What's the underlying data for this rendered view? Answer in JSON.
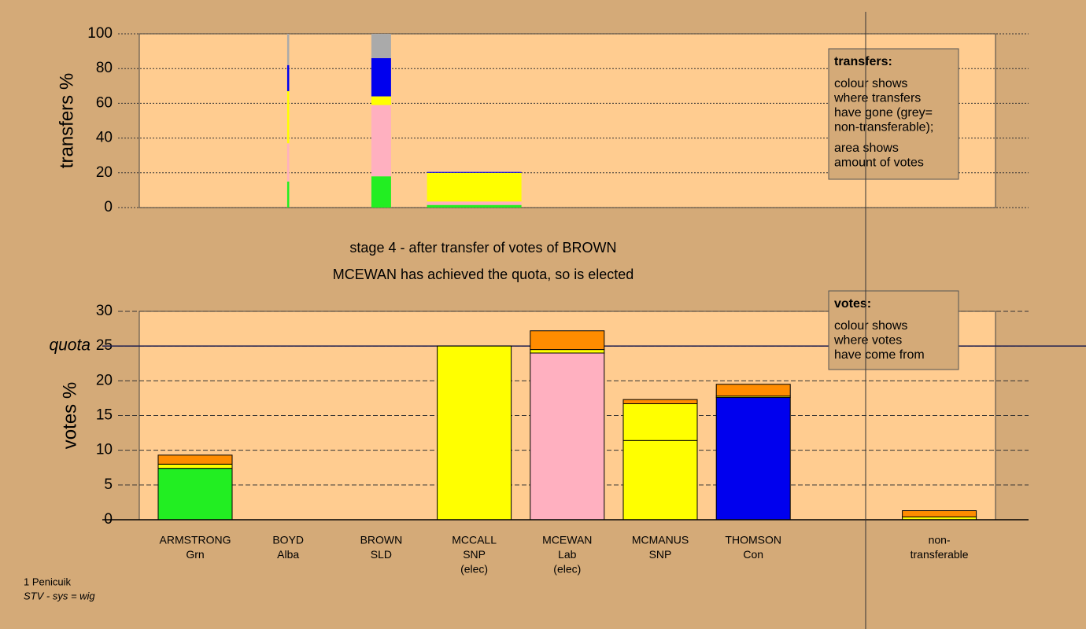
{
  "header": {
    "lines": [
      "stage 4 - after transfer of votes of BROWN",
      "MCEWAN has achieved the quota, so is elected"
    ]
  },
  "footer": {
    "lines": [
      "1 Penicuik",
      "STV - sys = wig"
    ]
  },
  "chart_data": [
    {
      "type": "bar",
      "stacked": true,
      "y_label": "transfers %",
      "ylim": [
        0,
        100
      ],
      "yticks": [
        0,
        20,
        40,
        60,
        80,
        100
      ],
      "grid": true,
      "widths": [
        0.25,
        2.5,
        12
      ],
      "series": [
        {
          "color": "#22ee22",
          "values": [
            15,
            18,
            1.5
          ]
        },
        {
          "color": "#ffb0c0",
          "values": [
            22,
            41,
            2
          ]
        },
        {
          "color": "#ffff00",
          "values": [
            30,
            5,
            16.5
          ]
        },
        {
          "color": "#0000ee",
          "values": [
            15,
            22,
            0.5
          ]
        },
        {
          "color": "#aaaaaa",
          "values": [
            18,
            14,
            0
          ]
        }
      ],
      "legend": {
        "title": "transfers:",
        "lines": [
          "colour shows",
          "where transfers",
          "have gone (grey=",
          "non-transferable);",
          "area shows",
          "amount of votes"
        ]
      }
    },
    {
      "type": "bar",
      "stacked": true,
      "y_label": "votes %",
      "ylim": [
        0,
        30
      ],
      "yticks": [
        0,
        5,
        10,
        15,
        20,
        25,
        30
      ],
      "grid": true,
      "quota": {
        "value": 25,
        "label": "quota"
      },
      "categories": [
        [
          "ARMSTRONG",
          "Grn"
        ],
        [
          "BOYD",
          "Alba"
        ],
        [
          "BROWN",
          "SLD"
        ],
        [
          "MCCALL",
          "SNP",
          "(elec)"
        ],
        [
          "MCEWAN",
          "Lab",
          "(elec)"
        ],
        [
          "MCMANUS",
          "SNP"
        ],
        [
          "THOMSON",
          "Con"
        ],
        null,
        [
          "non-",
          "transferable"
        ]
      ],
      "series": [
        {
          "color": "#22ee22",
          "values": [
            7.4,
            0,
            0,
            0,
            0,
            0,
            0,
            null,
            0
          ]
        },
        {
          "color": "#ffb0c0",
          "values": [
            0,
            0,
            0,
            0,
            24,
            0,
            0,
            null,
            0
          ]
        },
        {
          "color": "#0000ee",
          "values": [
            0,
            0,
            0,
            0,
            0,
            0,
            17.6,
            null,
            0
          ]
        },
        {
          "color": "#ffff00",
          "values": [
            0.6,
            0,
            0,
            25,
            0.5,
            11.4,
            0.2,
            null,
            0.4
          ]
        },
        {
          "color": "#ffff00",
          "values": [
            0,
            0,
            0,
            0,
            0,
            5.3,
            0,
            null,
            0
          ]
        },
        {
          "color": "#ff8c00",
          "values": [
            1.3,
            0,
            0,
            0,
            2.7,
            0.6,
            1.7,
            null,
            0.9
          ]
        }
      ],
      "legend": {
        "title": "votes:",
        "lines": [
          "colour shows",
          "where votes",
          "have come from"
        ]
      }
    }
  ]
}
